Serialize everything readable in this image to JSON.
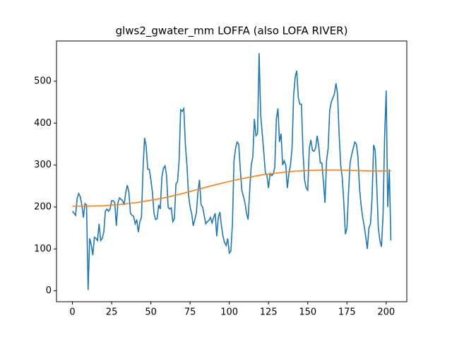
{
  "chart_data": {
    "type": "line",
    "title": "glws2_gwater_mm LOFFA (also LOFA RIVER)",
    "xlim": [
      -10.15,
      213.15
    ],
    "xticks": [
      0,
      25,
      50,
      75,
      100,
      125,
      150,
      175,
      200
    ],
    "ylim": [
      -26,
      596
    ],
    "yticks": [
      0,
      100,
      200,
      300,
      400,
      500
    ],
    "grid": false,
    "series": [
      {
        "color": "#1f77b4",
        "x": [
          0,
          1,
          2,
          3,
          4,
          5,
          6,
          7,
          8,
          9,
          10,
          11,
          12,
          13,
          14,
          15,
          16,
          17,
          18,
          19,
          20,
          21,
          22,
          23,
          24,
          25,
          26,
          27,
          28,
          29,
          30,
          31,
          32,
          33,
          34,
          35,
          36,
          37,
          38,
          39,
          40,
          41,
          42,
          43,
          44,
          45,
          46,
          47,
          48,
          49,
          50,
          51,
          52,
          53,
          54,
          55,
          56,
          57,
          58,
          59,
          60,
          61,
          62,
          63,
          64,
          65,
          66,
          67,
          68,
          69,
          70,
          71,
          72,
          73,
          74,
          75,
          76,
          77,
          78,
          79,
          80,
          81,
          82,
          83,
          84,
          85,
          86,
          87,
          88,
          89,
          90,
          91,
          92,
          93,
          94,
          95,
          96,
          97,
          98,
          99,
          100,
          101,
          102,
          103,
          104,
          105,
          106,
          107,
          108,
          109,
          110,
          111,
          112,
          113,
          114,
          115,
          116,
          117,
          118,
          119,
          120,
          121,
          122,
          123,
          124,
          125,
          126,
          127,
          128,
          129,
          130,
          131,
          132,
          133,
          134,
          135,
          136,
          137,
          138,
          139,
          140,
          141,
          142,
          143,
          144,
          145,
          146,
          147,
          148,
          149,
          150,
          151,
          152,
          153,
          154,
          155,
          156,
          157,
          158,
          159,
          160,
          161,
          162,
          163,
          164,
          165,
          166,
          167,
          168,
          169,
          170,
          171,
          172,
          173,
          174,
          175,
          176,
          177,
          178,
          179,
          180,
          181,
          182,
          183,
          184,
          185,
          186,
          187,
          188,
          189,
          190,
          191,
          192,
          193,
          194,
          195,
          196,
          197,
          198,
          199,
          200,
          201,
          202,
          203
        ],
        "values": [
          190,
          185,
          180,
          220,
          232,
          225,
          205,
          175,
          208,
          205,
          2,
          125,
          110,
          85,
          128,
          125,
          120,
          160,
          120,
          125,
          140,
          190,
          195,
          190,
          195,
          215,
          215,
          210,
          155,
          210,
          222,
          218,
          215,
          205,
          235,
          252,
          235,
          185,
          180,
          178,
          160,
          170,
          140,
          165,
          175,
          290,
          365,
          345,
          290,
          290,
          265,
          235,
          185,
          170,
          172,
          205,
          195,
          270,
          292,
          298,
          275,
          200,
          195,
          198,
          165,
          172,
          255,
          260,
          310,
          432,
          428,
          435,
          350,
          300,
          230,
          200,
          185,
          155,
          170,
          185,
          235,
          265,
          205,
          200,
          180,
          160,
          165,
          168,
          175,
          162,
          175,
          185,
          130,
          175,
          188,
          155,
          130,
          115,
          108,
          125,
          90,
          95,
          160,
          310,
          340,
          355,
          350,
          290,
          240,
          225,
          210,
          185,
          170,
          240,
          300,
          320,
          410,
          370,
          375,
          567,
          420,
          375,
          330,
          282,
          275,
          245,
          280,
          275,
          278,
          295,
          410,
          435,
          355,
          375,
          300,
          310,
          300,
          245,
          280,
          300,
          340,
          465,
          510,
          525,
          460,
          445,
          445,
          330,
          265,
          245,
          240,
          340,
          360,
          335,
          333,
          340,
          370,
          345,
          305,
          305,
          260,
          210,
          310,
          340,
          430,
          450,
          460,
          470,
          495,
          470,
          375,
          300,
          270,
          210,
          135,
          150,
          235,
          305,
          325,
          340,
          355,
          350,
          320,
          245,
          205,
          175,
          155,
          128,
          100,
          150,
          160,
          220,
          348,
          335,
          250,
          150,
          120,
          105,
          180,
          365,
          478,
          200,
          290,
          120
        ]
      },
      {
        "color": "#ff7f0e",
        "x": [
          0,
          10,
          20,
          30,
          40,
          50,
          60,
          70,
          80,
          90,
          100,
          110,
          120,
          130,
          140,
          150,
          160,
          170,
          180,
          190,
          200,
          203
        ],
        "values": [
          202,
          202,
          203,
          206,
          210,
          216,
          223,
          232,
          242,
          252,
          261,
          269,
          276,
          281,
          285,
          287,
          288,
          288,
          287,
          286,
          286,
          286
        ]
      }
    ]
  }
}
